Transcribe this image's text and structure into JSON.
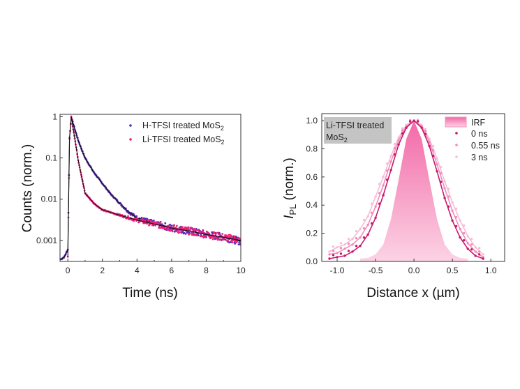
{
  "chart_data": [
    {
      "type": "scatter",
      "xlabel": "Time (ns)",
      "ylabel": "Counts (norm.)",
      "xlim": [
        -0.45,
        10
      ],
      "ylim": [
        0.00031,
        1.14
      ],
      "yscale": "log",
      "xticks": [
        "0",
        "2",
        "4",
        "6",
        "8",
        "10"
      ],
      "yticks": [
        "0.001",
        "0.01",
        "0.1",
        "1"
      ],
      "legend_position": "top-right",
      "series": [
        {
          "name": "H-TFSI treated MoS",
          "name_sub": "2",
          "color": "#5b2bb0",
          "x": [
            -0.4,
            -0.2,
            0,
            0.1,
            0.2,
            0.4,
            0.6,
            0.8,
            1.0,
            1.5,
            2,
            2.5,
            3,
            3.5,
            4,
            5,
            6,
            7,
            8,
            9,
            10
          ],
          "y": [
            0.00035,
            0.0004,
            0.0006,
            0.3,
            1,
            0.5,
            0.27,
            0.16,
            0.1,
            0.045,
            0.024,
            0.013,
            0.008,
            0.005,
            0.0035,
            0.0026,
            0.002,
            0.0017,
            0.0014,
            0.0012,
            0.00095
          ]
        },
        {
          "name": "Li-TFSI treated MoS",
          "name_sub": "2",
          "color": "#ee1f78",
          "x": [
            0,
            0.1,
            0.2,
            0.4,
            0.6,
            0.8,
            1.0,
            1.5,
            2,
            3,
            4,
            5,
            6,
            7,
            8,
            9,
            10
          ],
          "y": [
            0.0004,
            0.3,
            1,
            0.3,
            0.09,
            0.035,
            0.014,
            0.008,
            0.0055,
            0.0041,
            0.0031,
            0.0025,
            0.002,
            0.0017,
            0.0014,
            0.0012,
            0.001
          ]
        }
      ],
      "fit_color": "#111111"
    },
    {
      "type": "scatter",
      "xlabel": "Distance x (µm)",
      "ylabel_main": "I",
      "ylabel_sub": "PL",
      "ylabel_rest": " (norm.)",
      "xlim": [
        -1.2,
        1.18
      ],
      "ylim": [
        0,
        1.05
      ],
      "xticks": [
        -1.0,
        -0.5,
        0.0,
        0.5,
        1.0
      ],
      "xtick_labels": [
        "-1.0",
        "-0.5",
        "0.0",
        "0.5",
        "1.0"
      ],
      "yticks": [
        0.0,
        0.2,
        0.4,
        0.6,
        0.8,
        1.0
      ],
      "ytick_labels": [
        "0.0",
        "0.2",
        "0.4",
        "0.6",
        "0.8",
        "1.0"
      ],
      "legend_position": "top-right",
      "annotation": {
        "line1": "Li-TFSI treated",
        "line2": "MoS",
        "line2_sub": "2",
        "background": "#c4c4c4"
      },
      "irf": {
        "name": "IRF",
        "color_top": "#f26aa8",
        "color_bottom": "#fcd3e4",
        "x": [
          -0.7,
          -0.6,
          -0.5,
          -0.4,
          -0.3,
          -0.2,
          -0.1,
          0,
          0.1,
          0.2,
          0.3,
          0.4,
          0.5,
          0.6,
          0.7
        ],
        "y": [
          0.02,
          0.025,
          0.05,
          0.12,
          0.3,
          0.58,
          0.87,
          1.0,
          0.87,
          0.58,
          0.3,
          0.12,
          0.05,
          0.025,
          0.02
        ]
      },
      "series": [
        {
          "name": "0 ns",
          "color": "#c8186e",
          "x": [
            -1.1,
            -1.0,
            -0.9,
            -0.8,
            -0.7,
            -0.6,
            -0.5,
            -0.4,
            -0.3,
            -0.2,
            -0.1,
            0,
            0.1,
            0.2,
            0.3,
            0.4,
            0.5,
            0.6,
            0.7,
            0.8,
            0.9
          ],
          "y": [
            0.02,
            0.03,
            0.04,
            0.07,
            0.11,
            0.19,
            0.31,
            0.47,
            0.65,
            0.83,
            0.95,
            1.0,
            0.95,
            0.82,
            0.64,
            0.45,
            0.29,
            0.17,
            0.09,
            0.04,
            0.02
          ]
        },
        {
          "name": "0.55 ns",
          "color": "#f08cb8",
          "x": [
            -1.1,
            -1.0,
            -0.9,
            -0.8,
            -0.7,
            -0.6,
            -0.5,
            -0.4,
            -0.3,
            -0.2,
            -0.1,
            0,
            0.1,
            0.2,
            0.3,
            0.4,
            0.5,
            0.6,
            0.7,
            0.8,
            0.9
          ],
          "y": [
            0.05,
            0.06,
            0.09,
            0.12,
            0.17,
            0.26,
            0.39,
            0.54,
            0.71,
            0.86,
            0.96,
            1.0,
            0.96,
            0.85,
            0.69,
            0.52,
            0.36,
            0.23,
            0.13,
            0.07,
            0.03
          ]
        },
        {
          "name": "3 ns",
          "color": "#f7bdd6",
          "x": [
            -1.1,
            -1.0,
            -0.9,
            -0.8,
            -0.7,
            -0.6,
            -0.5,
            -0.4,
            -0.3,
            -0.2,
            -0.1,
            0,
            0.1,
            0.2,
            0.3,
            0.4,
            0.5,
            0.6,
            0.7,
            0.8,
            0.9
          ],
          "y": [
            0.07,
            0.1,
            0.12,
            0.16,
            0.23,
            0.32,
            0.46,
            0.6,
            0.75,
            0.88,
            0.97,
            1.0,
            0.97,
            0.87,
            0.73,
            0.57,
            0.42,
            0.29,
            0.18,
            0.1,
            0.05
          ]
        }
      ]
    }
  ]
}
